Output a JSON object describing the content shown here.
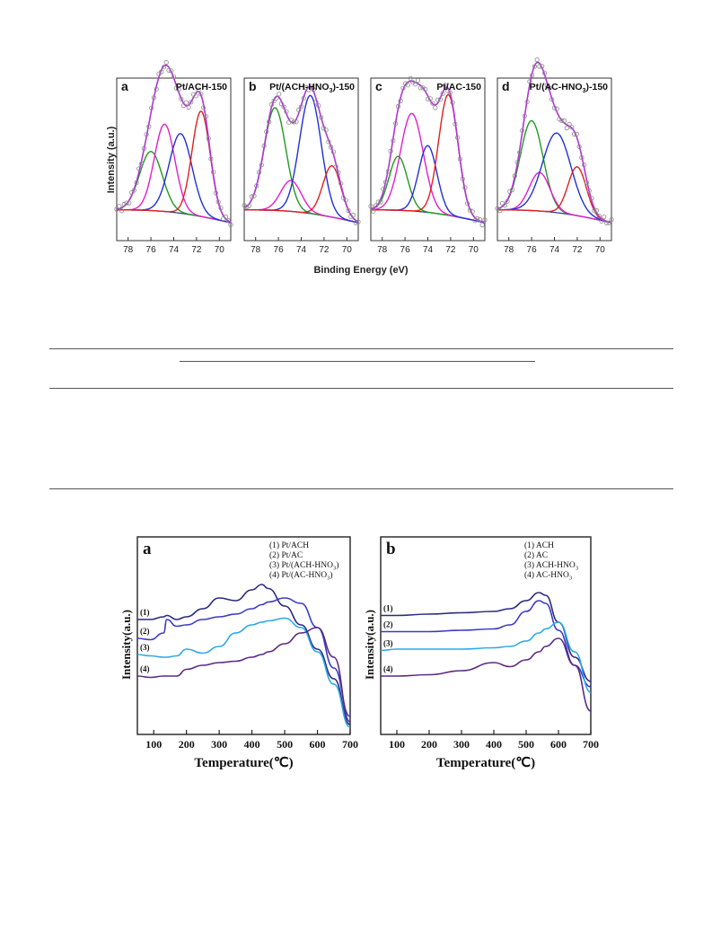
{
  "figure_xps": {
    "y_label": "Intensity (a.u.)",
    "x_label": "Binding Energy (eV)",
    "x_ticks": [
      "78",
      "76",
      "74",
      "72",
      "70"
    ],
    "panels": [
      {
        "letter": "a",
        "sample": "Pt/ACH-150"
      },
      {
        "letter": "b",
        "sample": "Pt/(ACH-HNO3)-150",
        "sample_main": "Pt/(ACH-HNO",
        "sample_sub": "3",
        "sample_tail": ")-150"
      },
      {
        "letter": "c",
        "sample": "Pt/AC-150"
      },
      {
        "letter": "d",
        "sample": "Pt/(AC-HNO3)-150",
        "sample_main": "Pt/(AC-HNO",
        "sample_sub": "3",
        "sample_tail": ")-150"
      }
    ]
  },
  "figure_tpd": {
    "y_label": "Intensity(a.u.)",
    "x_label": "Temperature(℃)",
    "x_ticks": [
      "100",
      "200",
      "300",
      "400",
      "500",
      "600",
      "700"
    ],
    "panels": [
      {
        "letter": "a",
        "legend": [
          "(1) Pt/ACH",
          "(2) Pt/AC",
          "(3) Pt/(ACH-HNO3)",
          "(4) Pt/(AC-HNO3)"
        ],
        "series_labels": [
          "(1)",
          "(2)",
          "(3)",
          "(4)"
        ]
      },
      {
        "letter": "b",
        "legend": [
          "(1) ACH",
          "(2) AC",
          "(3) ACH-HNO3",
          "(4) AC-HNO3"
        ],
        "series_labels": [
          "(1)",
          "(2)",
          "(3)",
          "(4)"
        ]
      }
    ]
  },
  "colors": {
    "envelope": "#b033d8",
    "green": "#1f9a1f",
    "magenta": "#e020c8",
    "blue": "#2030d8",
    "red": "#e02020",
    "background": "#404090",
    "points": "#8a8a8a",
    "tpd1": "#2a2a80",
    "tpd2": "#3a3ac8",
    "tpd3": "#2aa8e8",
    "tpd4": "#5a2a88"
  },
  "chart_data": [
    {
      "type": "line",
      "title": "Pt/ACH-150",
      "xlabel": "Binding Energy (eV)",
      "ylabel": "Intensity (a.u.)",
      "xlim": [
        79,
        69
      ],
      "peaks": [
        {
          "center": 76.0,
          "height": 0.46,
          "width": 1.0
        },
        {
          "center": 74.8,
          "height": 0.68,
          "width": 0.9
        },
        {
          "center": 73.4,
          "height": 0.62,
          "width": 1.0
        },
        {
          "center": 71.6,
          "height": 0.82,
          "width": 0.8
        }
      ]
    },
    {
      "type": "line",
      "title": "Pt/(ACH-HNO3)-150",
      "xlabel": "Binding Energy (eV)",
      "ylabel": "Intensity (a.u.)",
      "xlim": [
        79,
        69
      ],
      "peaks": [
        {
          "center": 76.3,
          "height": 0.8,
          "width": 0.95
        },
        {
          "center": 74.9,
          "height": 0.24,
          "width": 0.9
        },
        {
          "center": 73.2,
          "height": 0.92,
          "width": 0.95
        },
        {
          "center": 71.3,
          "height": 0.4,
          "width": 0.8
        }
      ]
    },
    {
      "type": "line",
      "title": "Pt/AC-150",
      "xlabel": "Binding Energy (eV)",
      "ylabel": "Intensity (a.u.)",
      "xlim": [
        79,
        69
      ],
      "peaks": [
        {
          "center": 76.6,
          "height": 0.42,
          "width": 0.8
        },
        {
          "center": 75.4,
          "height": 0.76,
          "width": 1.0
        },
        {
          "center": 74.0,
          "height": 0.52,
          "width": 0.8
        },
        {
          "center": 72.2,
          "height": 0.94,
          "width": 0.85
        }
      ]
    },
    {
      "type": "line",
      "title": "Pt/(AC-HNO3)-150",
      "xlabel": "Binding Energy (eV)",
      "ylabel": "Intensity (a.u.)",
      "xlim": [
        79,
        69
      ],
      "peaks": [
        {
          "center": 76.0,
          "height": 0.7,
          "width": 1.0
        },
        {
          "center": 75.3,
          "height": 0.3,
          "width": 0.9
        },
        {
          "center": 73.8,
          "height": 0.62,
          "width": 1.25
        },
        {
          "center": 72.0,
          "height": 0.38,
          "width": 0.8
        }
      ]
    },
    {
      "type": "line",
      "xlabel": "Temperature(℃)",
      "ylabel": "Intensity(a.u.)",
      "xlim": [
        50,
        700
      ],
      "x": [
        50,
        90,
        130,
        140,
        170,
        200,
        250,
        300,
        350,
        400,
        430,
        450,
        500,
        550,
        600,
        650,
        700
      ],
      "series": [
        {
          "name": "(1) Pt/ACH",
          "values": [
            0.8,
            0.8,
            0.82,
            0.83,
            0.8,
            0.82,
            0.88,
            0.96,
            0.94,
            1.02,
            1.06,
            1.03,
            0.9,
            0.76,
            0.58,
            0.36,
            0.02
          ]
        },
        {
          "name": "(2) Pt/AC",
          "values": [
            0.66,
            0.65,
            0.7,
            0.8,
            0.75,
            0.76,
            0.8,
            0.82,
            0.84,
            0.88,
            0.91,
            0.93,
            0.96,
            0.92,
            0.74,
            0.44,
            0.08
          ]
        },
        {
          "name": "(3) Pt/(ACH-HNO3)",
          "values": [
            0.54,
            0.53,
            0.52,
            0.52,
            0.53,
            0.58,
            0.55,
            0.6,
            0.7,
            0.76,
            0.78,
            0.79,
            0.81,
            0.74,
            0.56,
            0.32,
            0.0
          ]
        },
        {
          "name": "(4) Pt/(AC-HNO3)",
          "values": [
            0.38,
            0.37,
            0.38,
            0.38,
            0.38,
            0.43,
            0.46,
            0.48,
            0.49,
            0.52,
            0.54,
            0.56,
            0.62,
            0.7,
            0.74,
            0.52,
            0.04
          ]
        }
      ]
    },
    {
      "type": "line",
      "xlabel": "Temperature(℃)",
      "ylabel": "Intensity(a.u.)",
      "xlim": [
        50,
        700
      ],
      "x": [
        50,
        100,
        200,
        300,
        400,
        450,
        500,
        540,
        560,
        600,
        650,
        700
      ],
      "series": [
        {
          "name": "(1) ACH",
          "values": [
            0.83,
            0.83,
            0.84,
            0.85,
            0.86,
            0.88,
            0.94,
            1.0,
            0.98,
            0.78,
            0.52,
            0.34
          ]
        },
        {
          "name": "(2) AC",
          "values": [
            0.71,
            0.71,
            0.71,
            0.72,
            0.73,
            0.76,
            0.86,
            0.94,
            0.92,
            0.72,
            0.46,
            0.3
          ]
        },
        {
          "name": "(3) ACH-HNO3",
          "values": [
            0.57,
            0.58,
            0.58,
            0.58,
            0.59,
            0.6,
            0.64,
            0.7,
            0.73,
            0.78,
            0.56,
            0.26
          ]
        },
        {
          "name": "(4) AC-HNO3",
          "values": [
            0.38,
            0.38,
            0.39,
            0.42,
            0.48,
            0.45,
            0.5,
            0.56,
            0.6,
            0.66,
            0.46,
            0.12
          ]
        }
      ]
    }
  ]
}
